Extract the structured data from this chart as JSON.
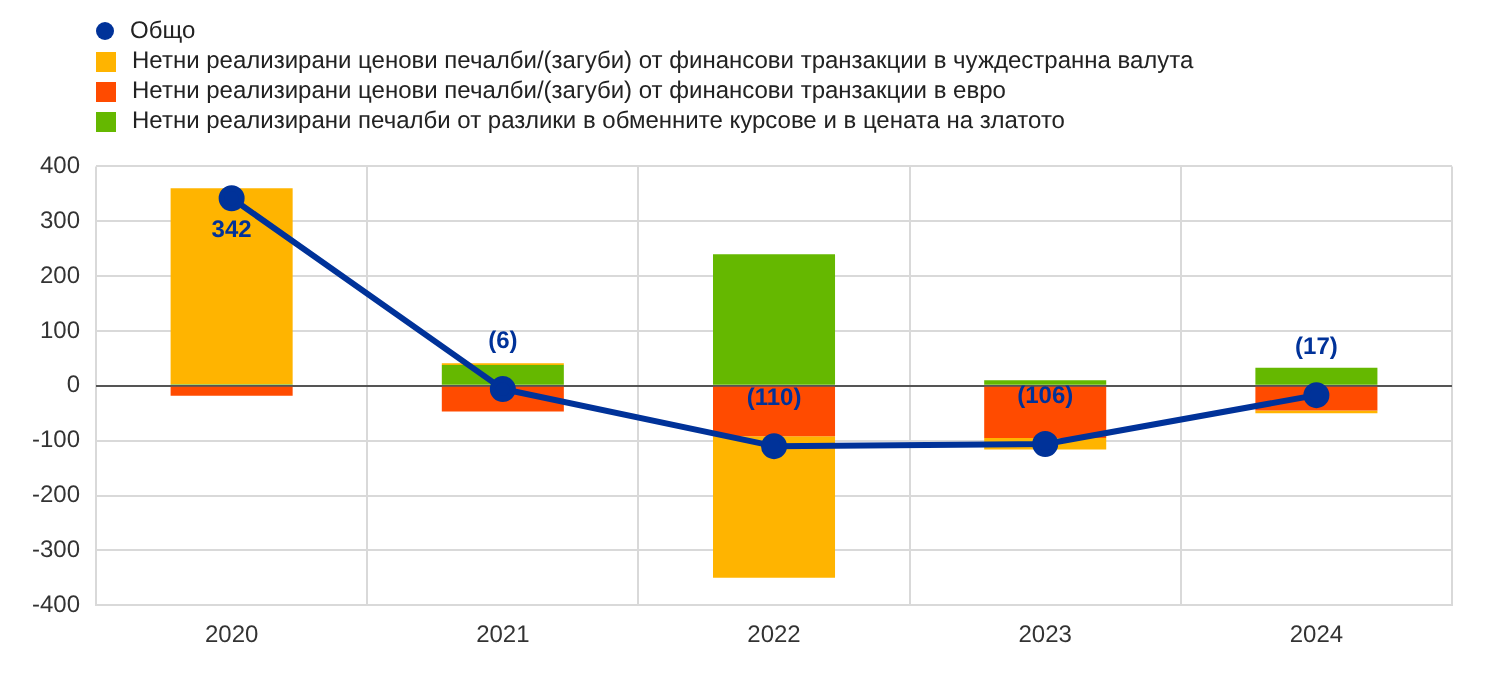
{
  "chart_data": {
    "type": "bar",
    "stacked": true,
    "categories": [
      "2020",
      "2021",
      "2022",
      "2023",
      "2024"
    ],
    "series": [
      {
        "name": "Общо",
        "type": "line",
        "color": "#003299",
        "values": [
          342,
          -6,
          -110,
          -106,
          -17
        ],
        "value_labels": [
          "342",
          "(6)",
          "(110)",
          "(106)",
          "(17)"
        ],
        "marker": "circle"
      },
      {
        "name": "Нетни реализирани печалби от разлики в обменните курсове и в цената на златото",
        "color": "#65b800",
        "values": [
          3,
          38,
          240,
          10,
          33
        ]
      },
      {
        "name": "Нетни реализирани ценови печалби/(загуби) от финансови транзакции в евро",
        "color": "#ff4b00",
        "values": [
          -18,
          -47,
          -92,
          -95,
          -45
        ]
      },
      {
        "name": "Нетни реализирани ценови печалби/(загуби) от финансови транзакции в чуждестранна валута",
        "color": "#ffb400",
        "values": [
          357,
          3,
          -258,
          -21,
          -5
        ]
      }
    ],
    "ylim": [
      -400,
      400
    ],
    "yticks": [
      -400,
      -300,
      -200,
      -100,
      0,
      100,
      200,
      300,
      400
    ],
    "grid": true,
    "legend": "top left"
  }
}
